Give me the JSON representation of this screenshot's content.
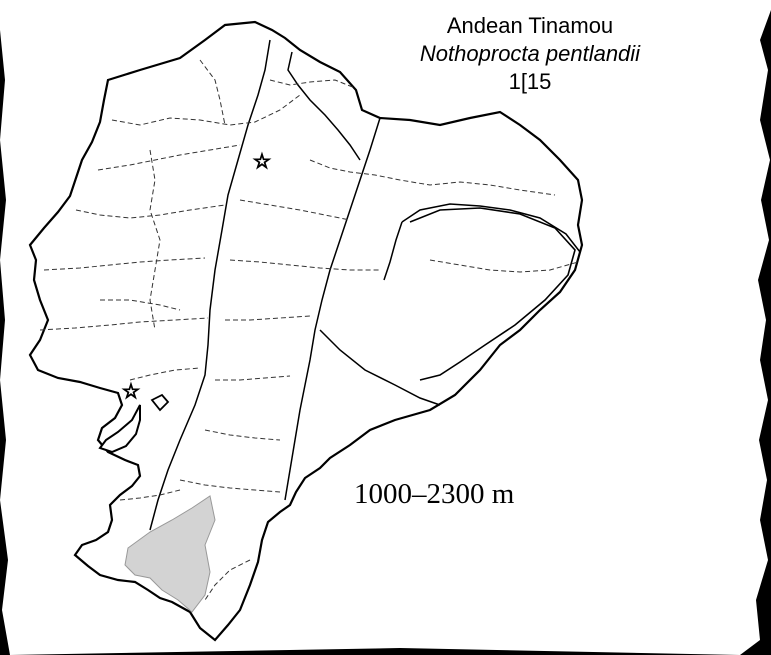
{
  "map": {
    "common_name": "Andean Tinamou",
    "scientific_name": "Nothoprocta pentlandii",
    "plate_number": "1[15",
    "elevation_range": "1000–2300 m"
  },
  "colors": {
    "background": "#000000",
    "land": "#ffffff",
    "range": "#d3d3d3",
    "outline": "#000000"
  },
  "markers": [
    "capital-star",
    "port-star"
  ]
}
